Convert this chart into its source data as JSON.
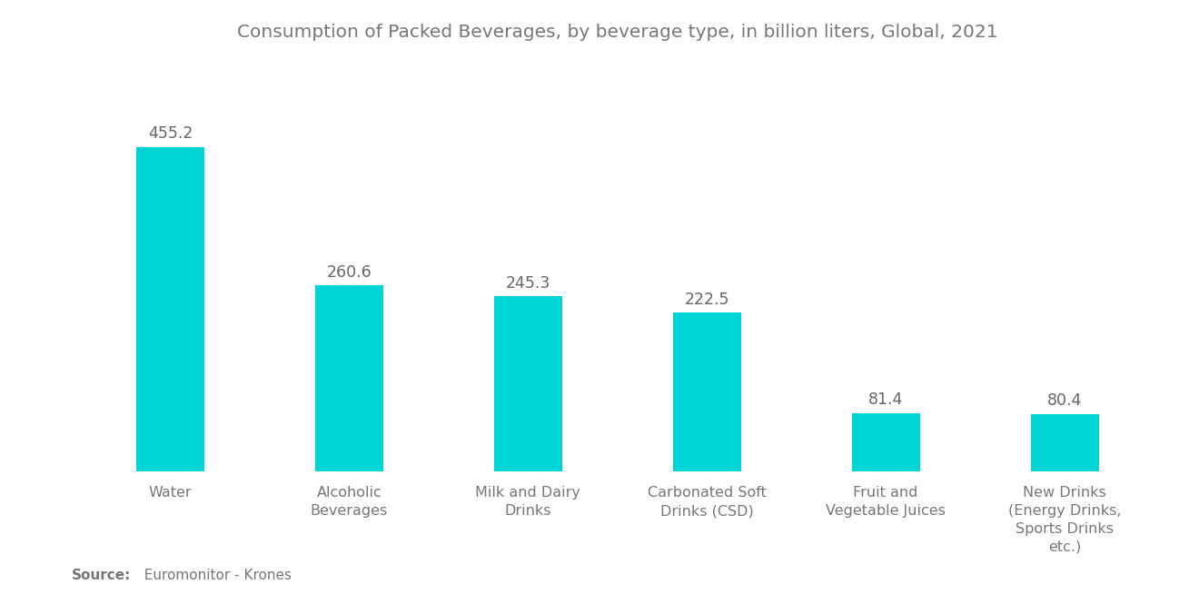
{
  "title": "Consumption of Packed Beverages, by beverage type, in billion liters, Global, 2021",
  "categories": [
    "Water",
    "Alcoholic\nBeverages",
    "Milk and Dairy\nDrinks",
    "Carbonated Soft\nDrinks (CSD)",
    "Fruit and\nVegetable Juices",
    "New Drinks\n(Energy Drinks,\nSports Drinks\netc.)"
  ],
  "values": [
    455.2,
    260.6,
    245.3,
    222.5,
    81.4,
    80.4
  ],
  "bar_color": "#00D5D5",
  "background_color": "#FFFFFF",
  "title_color": "#777777",
  "label_color": "#777777",
  "value_color": "#666666",
  "source_bold": "Source:",
  "source_rest": "  Euromonitor - Krones",
  "ylim": [
    0,
    560
  ],
  "title_fontsize": 14.5,
  "label_fontsize": 11.5,
  "value_fontsize": 12.5,
  "source_fontsize": 11
}
